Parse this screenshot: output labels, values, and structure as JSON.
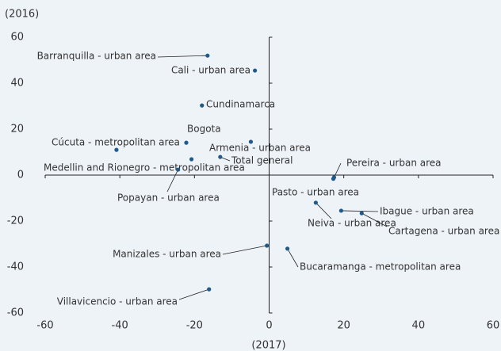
{
  "chart_data": {
    "type": "scatter",
    "y_label": "(2016)",
    "x_label": "(2017)",
    "color": "#1f5a8a",
    "xlim": [
      -60,
      60
    ],
    "ylim": [
      -60,
      60
    ],
    "xticks": [
      -60,
      -40,
      -20,
      0,
      20,
      40,
      60
    ],
    "yticks": [
      60,
      40,
      20,
      0,
      -20,
      -40,
      -60
    ],
    "labels": [
      "Barranquilla - urban area",
      "Cali - urban area",
      "Cundinamarca",
      "Bogota",
      "Cúcuta - metropolitan area",
      "Armenia - urban area",
      "Total general",
      "Medellin and Rionegro - metropolitan area",
      "Popayan - urban area",
      "Pereira - urban area",
      "Pasto - urban area",
      "Neiva - urban area",
      "Ibague - urban area",
      "Cartagena - urban area",
      "Manizales - urban area",
      "Bucaramanga - metropolitan area",
      "Villavicencio - urban area"
    ],
    "x": [
      -16.5,
      -3.8,
      -18,
      -22.2,
      -40.9,
      -4.9,
      -13.1,
      -20.8,
      -24.4,
      17.4,
      17.2,
      12.5,
      19.3,
      24.8,
      -0.6,
      4.9,
      -16.1
    ],
    "values": [
      52,
      45.5,
      30.3,
      14.1,
      11,
      14.5,
      7.9,
      6.9,
      2.4,
      -1,
      -1.6,
      -12,
      -15.5,
      -16.6,
      -30.7,
      -32,
      -49.7
    ]
  }
}
